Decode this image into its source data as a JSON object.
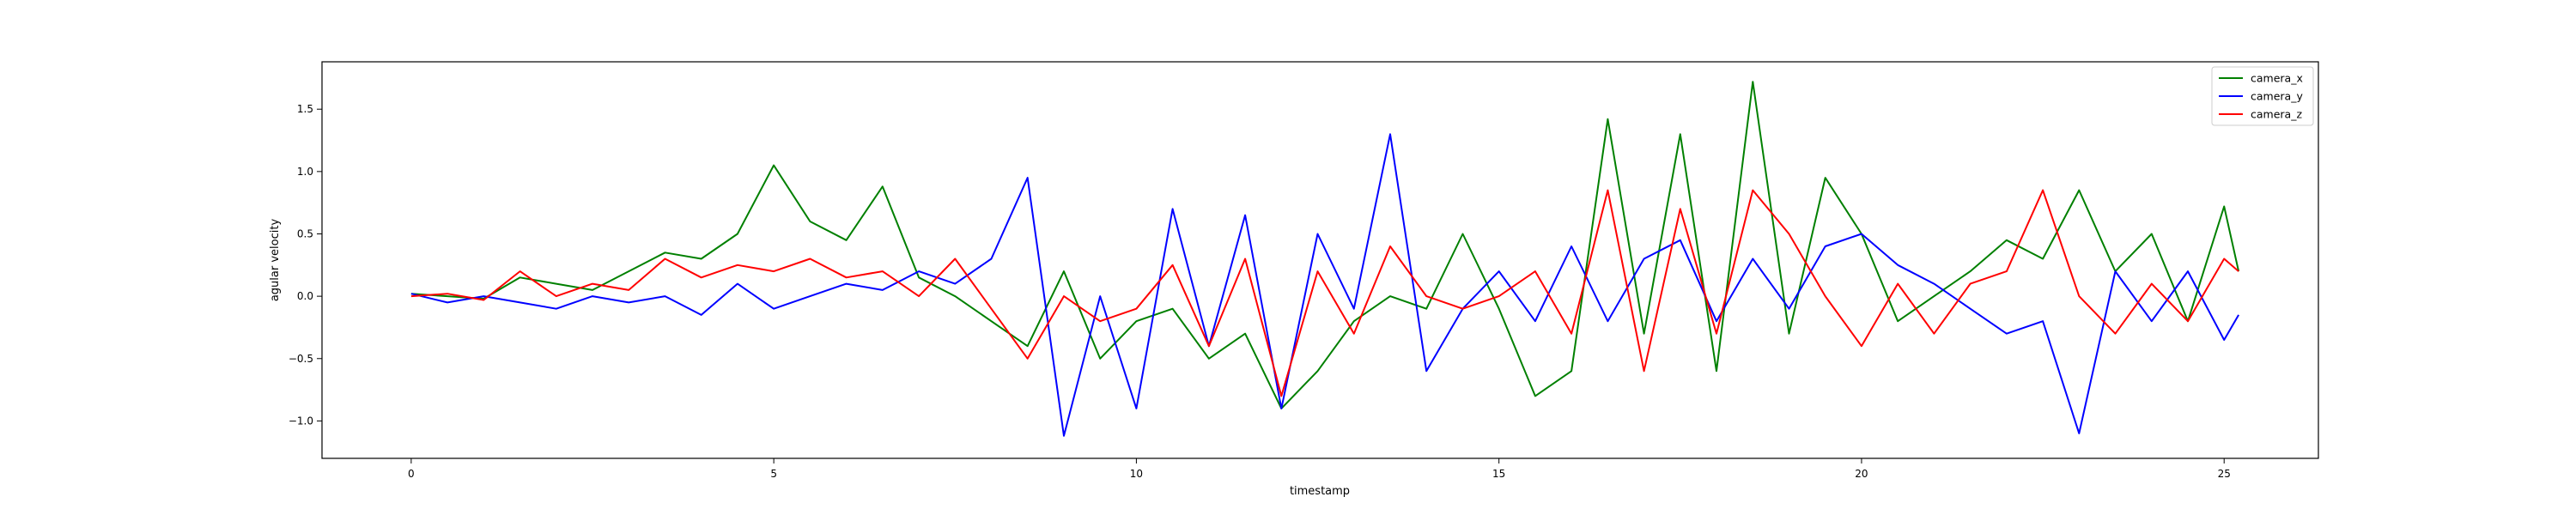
{
  "chart_data": {
    "type": "line",
    "title": "",
    "xlabel": "timestamp",
    "ylabel": "agular velocity",
    "xlim": [
      -1.23,
      26.3
    ],
    "ylim": [
      -1.3,
      1.88
    ],
    "xticks": [
      0,
      5,
      10,
      15,
      20,
      25
    ],
    "xtick_labels": [
      "0",
      "5",
      "10",
      "15",
      "20",
      "25"
    ],
    "yticks": [
      -1.0,
      -0.5,
      0.0,
      0.5,
      1.0,
      1.5
    ],
    "ytick_labels": [
      "−1.0",
      "−0.5",
      "0.0",
      "0.5",
      "1.0",
      "1.5"
    ],
    "grid": false,
    "legend_position": "top-right",
    "x": [
      0,
      0.5,
      1,
      1.5,
      2,
      2.5,
      3,
      3.5,
      4,
      4.5,
      5,
      5.5,
      6,
      6.5,
      7,
      7.5,
      8,
      8.5,
      9,
      9.5,
      10,
      10.5,
      11,
      11.5,
      12,
      12.5,
      13,
      13.5,
      14,
      14.5,
      15,
      15.5,
      16,
      16.5,
      17,
      17.5,
      18,
      18.5,
      19,
      19.5,
      20,
      20.5,
      21,
      21.5,
      22,
      22.5,
      23,
      23.5,
      24,
      24.5,
      25,
      25.2
    ],
    "series": [
      {
        "name": "camera_x",
        "color": "#008000",
        "values": [
          0.02,
          0.0,
          -0.02,
          0.15,
          0.1,
          0.05,
          0.2,
          0.35,
          0.3,
          0.5,
          1.05,
          0.6,
          0.45,
          0.88,
          0.15,
          0.0,
          -0.2,
          -0.4,
          0.2,
          -0.5,
          -0.2,
          -0.1,
          -0.5,
          -0.3,
          -0.9,
          -0.6,
          -0.2,
          0.0,
          -0.1,
          0.5,
          -0.1,
          -0.8,
          -0.6,
          1.42,
          -0.3,
          1.3,
          -0.6,
          1.72,
          -0.3,
          0.95,
          0.5,
          -0.2,
          0.0,
          0.2,
          0.45,
          0.3,
          0.85,
          0.2,
          0.5,
          -0.2,
          0.72,
          0.2
        ]
      },
      {
        "name": "camera_y",
        "color": "#0000ff",
        "values": [
          0.02,
          -0.05,
          0.0,
          -0.05,
          -0.1,
          0.0,
          -0.05,
          0.0,
          -0.15,
          0.1,
          -0.1,
          0.0,
          0.1,
          0.05,
          0.2,
          0.1,
          0.3,
          0.95,
          -1.12,
          0.0,
          -0.9,
          0.7,
          -0.4,
          0.65,
          -0.9,
          0.5,
          -0.1,
          1.3,
          -0.6,
          -0.1,
          0.2,
          -0.2,
          0.4,
          -0.2,
          0.3,
          0.45,
          -0.2,
          0.3,
          -0.1,
          0.4,
          0.5,
          0.25,
          0.1,
          -0.1,
          -0.3,
          -0.2,
          -1.1,
          0.2,
          -0.2,
          0.2,
          -0.35,
          -0.15
        ]
      },
      {
        "name": "camera_z",
        "color": "#ff0000",
        "values": [
          0.0,
          0.02,
          -0.03,
          0.2,
          0.0,
          0.1,
          0.05,
          0.3,
          0.15,
          0.25,
          0.2,
          0.3,
          0.15,
          0.2,
          0.0,
          0.3,
          -0.1,
          -0.5,
          0.0,
          -0.2,
          -0.1,
          0.25,
          -0.4,
          0.3,
          -0.8,
          0.2,
          -0.3,
          0.4,
          0.0,
          -0.1,
          0.0,
          0.2,
          -0.3,
          0.85,
          -0.6,
          0.7,
          -0.3,
          0.85,
          0.5,
          0.0,
          -0.4,
          0.1,
          -0.3,
          0.1,
          0.2,
          0.85,
          0.0,
          -0.3,
          0.1,
          -0.2,
          0.3,
          0.2
        ]
      }
    ]
  }
}
